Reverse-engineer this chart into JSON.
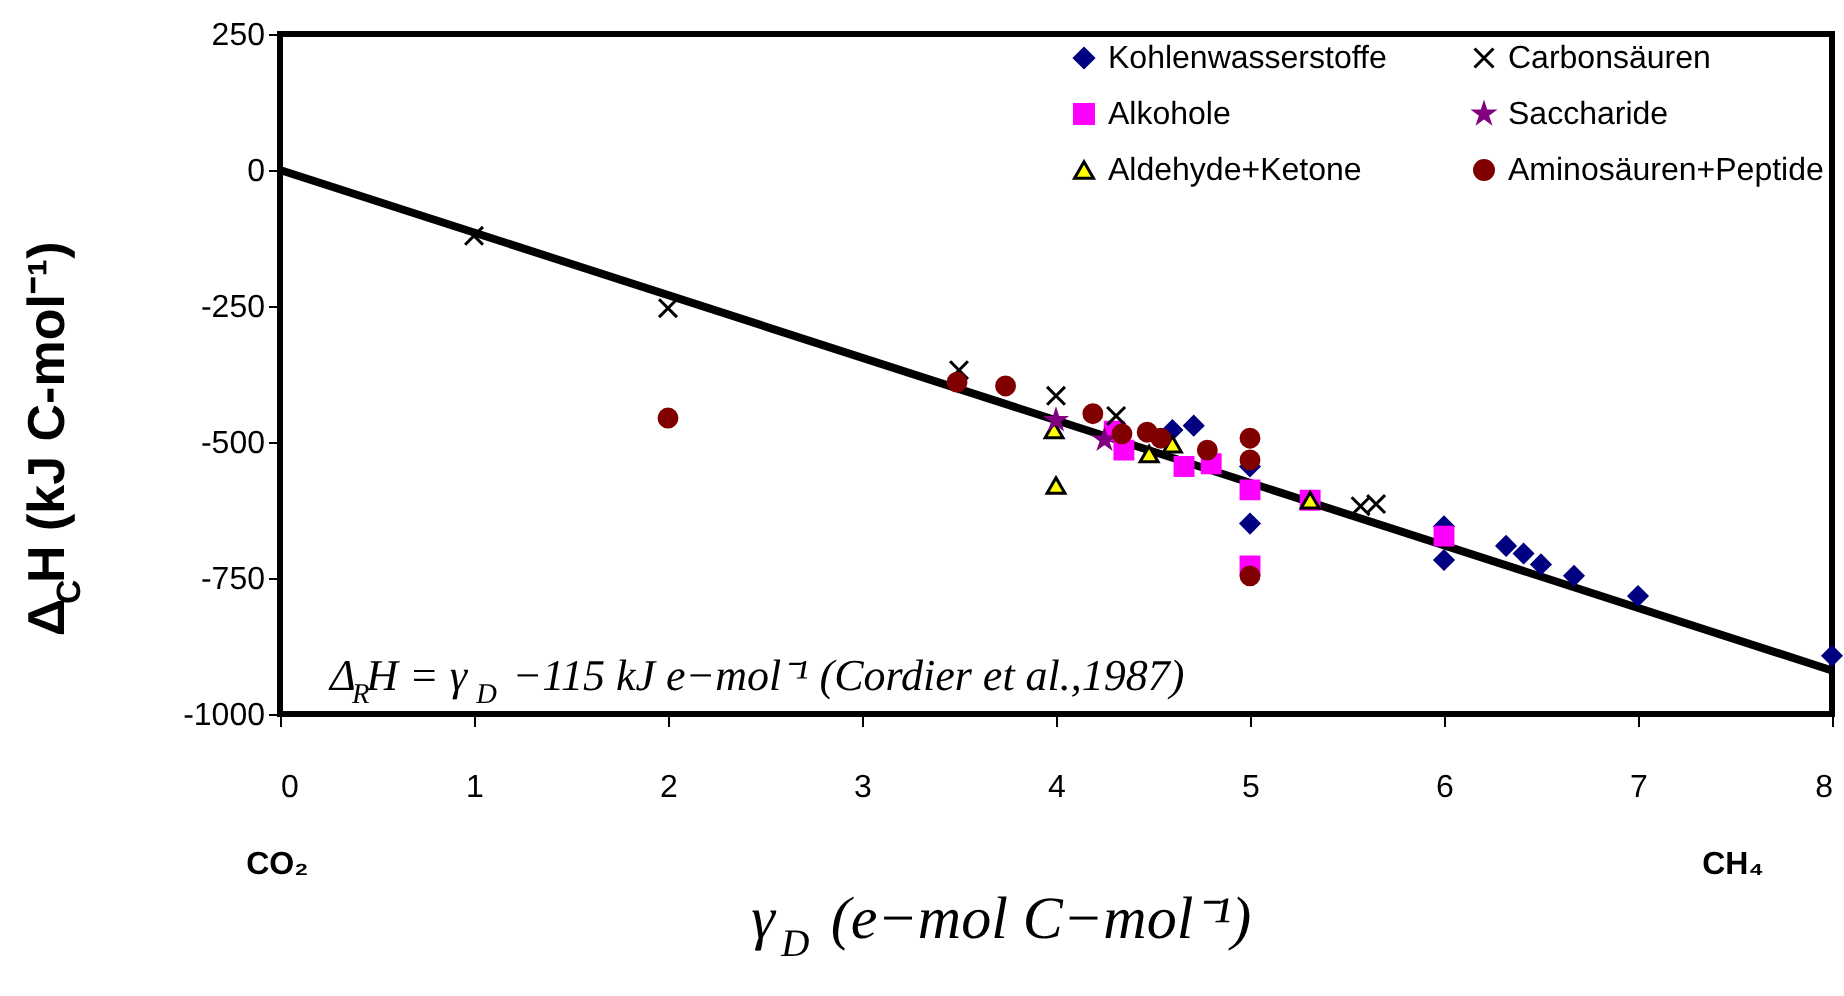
{
  "chart_data": {
    "type": "scatter",
    "xlabel": "γ$_{D}$ (e−mol C−mol⁻¹)",
    "ylabel": "Δ$_{C}$H (kJ C-mol⁻¹)",
    "annotations": [
      "Δ$_{R}$H = γ$_{D}$ −115 kJ e−mol⁻¹ (Cordier et al.,1987)",
      "CO₂",
      "CH₄"
    ],
    "xlim": [
      0,
      8
    ],
    "xticks": [
      0,
      1,
      2,
      3,
      4,
      5,
      6,
      7,
      8
    ],
    "ylim": [
      -1000,
      250
    ],
    "yticks": [
      -1000,
      -750,
      -500,
      -250,
      0,
      250
    ],
    "grid": false,
    "legend": "top right",
    "series": [
      {
        "name": "Kohlenwasserstoffe",
        "color": "#000080",
        "marker": "diamond",
        "x": [
          4.6,
          4.71,
          5.0,
          5.0,
          6.0,
          6.0,
          6.32,
          6.41,
          6.5,
          6.67,
          7.0,
          8.0
        ],
        "values": [
          -478,
          -470,
          -545,
          -650,
          -655,
          -717,
          -691,
          -705,
          -725,
          -746,
          -783,
          -893
        ]
      },
      {
        "name": "Alkohole",
        "color": "#ff00ff",
        "marker": "square",
        "x": [
          4.3,
          4.35,
          4.66,
          4.8,
          5.0,
          5.0,
          5.31,
          6.0
        ],
        "values": [
          -480,
          -515,
          -545,
          -540,
          -588,
          -728,
          -607,
          -673
        ]
      },
      {
        "name": "Aldehyde+Ketone",
        "color": "#ffff00",
        "marker": "triangle",
        "x": [
          3.99,
          4.0,
          4.48,
          4.6,
          5.31
        ],
        "values": [
          -478,
          -580,
          -522,
          -504,
          -607
        ]
      },
      {
        "name": "Carbonsäuren",
        "color": "#000000",
        "marker": "cross",
        "x": [
          1.0,
          2.0,
          3.5,
          4.0,
          4.31,
          5.57,
          5.65
        ],
        "values": [
          -121,
          -254,
          -368,
          -415,
          -452,
          -618,
          -614
        ]
      },
      {
        "name": "Saccharide",
        "color": "#800080",
        "marker": "star",
        "x": [
          4.0,
          4.25
        ],
        "values": [
          -460,
          -496
        ]
      },
      {
        "name": "Aminosäuren+Peptide",
        "color": "#800000",
        "marker": "circle",
        "x": [
          2.0,
          3.49,
          3.74,
          4.19,
          4.34,
          4.47,
          4.54,
          4.78,
          5.0,
          5.0,
          5.0
        ],
        "values": [
          -456,
          -390,
          -397,
          -448,
          -485,
          -482,
          -493,
          -515,
          -493,
          -533,
          -746
        ]
      },
      {
        "type": "line",
        "color": "#000000",
        "marker": "none",
        "line_style": "solid",
        "x": [
          0,
          8
        ],
        "values": [
          0,
          -920
        ]
      }
    ]
  }
}
